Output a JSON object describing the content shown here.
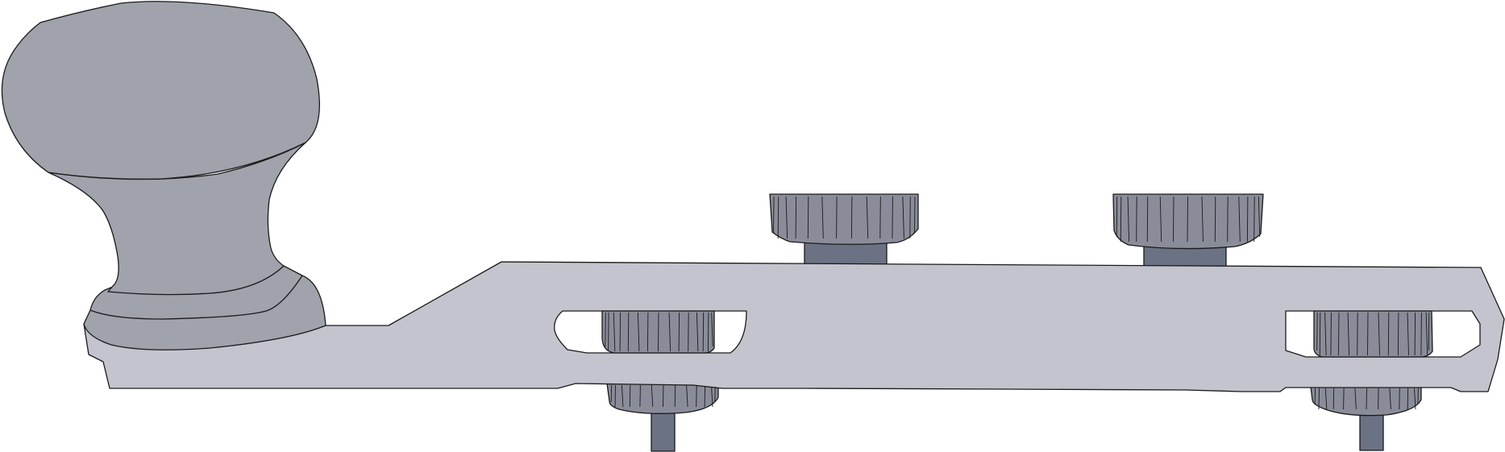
{
  "diagram": {
    "subject": "tool",
    "colors": {
      "background": "#ffffff",
      "body": "#c4c4ce",
      "handle": "#a0a2ac",
      "knob": "#8a8d99",
      "stem": "#6b7284",
      "slot": "#ffffff",
      "outline": "#1a1a1a"
    },
    "parts": [
      {
        "name": "handle"
      },
      {
        "name": "body-plate"
      },
      {
        "name": "slot-left"
      },
      {
        "name": "slot-right"
      },
      {
        "name": "top-knob-left"
      },
      {
        "name": "top-knob-right"
      },
      {
        "name": "bottom-knob-left"
      },
      {
        "name": "bottom-knob-right"
      }
    ]
  }
}
